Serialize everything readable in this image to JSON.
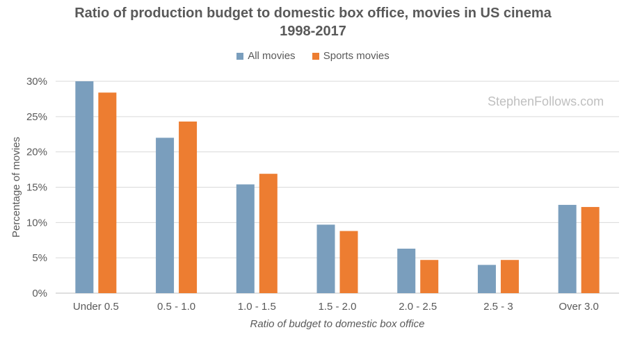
{
  "chart_data": {
    "type": "bar",
    "title_line1": "Ratio of production budget to domestic box office, movies in US cinema",
    "title_line2": "1998-2017",
    "xlabel": "Ratio of budget to domestic box office",
    "ylabel": "Percentage of movies",
    "categories": [
      "Under 0.5",
      "0.5 - 1.0",
      "1.0 - 1.5",
      "1.5 - 2.0",
      "2.0 - 2.5",
      "2.5 - 3",
      "Over 3.0"
    ],
    "series": [
      {
        "name": "All movies",
        "color": "#7a9ebd",
        "values": [
          30.0,
          22.0,
          15.4,
          9.7,
          6.3,
          4.0,
          12.5
        ]
      },
      {
        "name": "Sports movies",
        "color": "#ed7d31",
        "values": [
          28.4,
          24.3,
          16.9,
          8.8,
          4.7,
          4.7,
          12.2
        ]
      }
    ],
    "ylim": [
      0,
      30
    ],
    "yticks": [
      0,
      5,
      10,
      15,
      20,
      25,
      30
    ],
    "ytick_labels": [
      "0%",
      "5%",
      "10%",
      "15%",
      "20%",
      "25%",
      "30%"
    ],
    "grid": true,
    "legend_position": "top-center"
  },
  "watermark": "StephenFollows.com"
}
